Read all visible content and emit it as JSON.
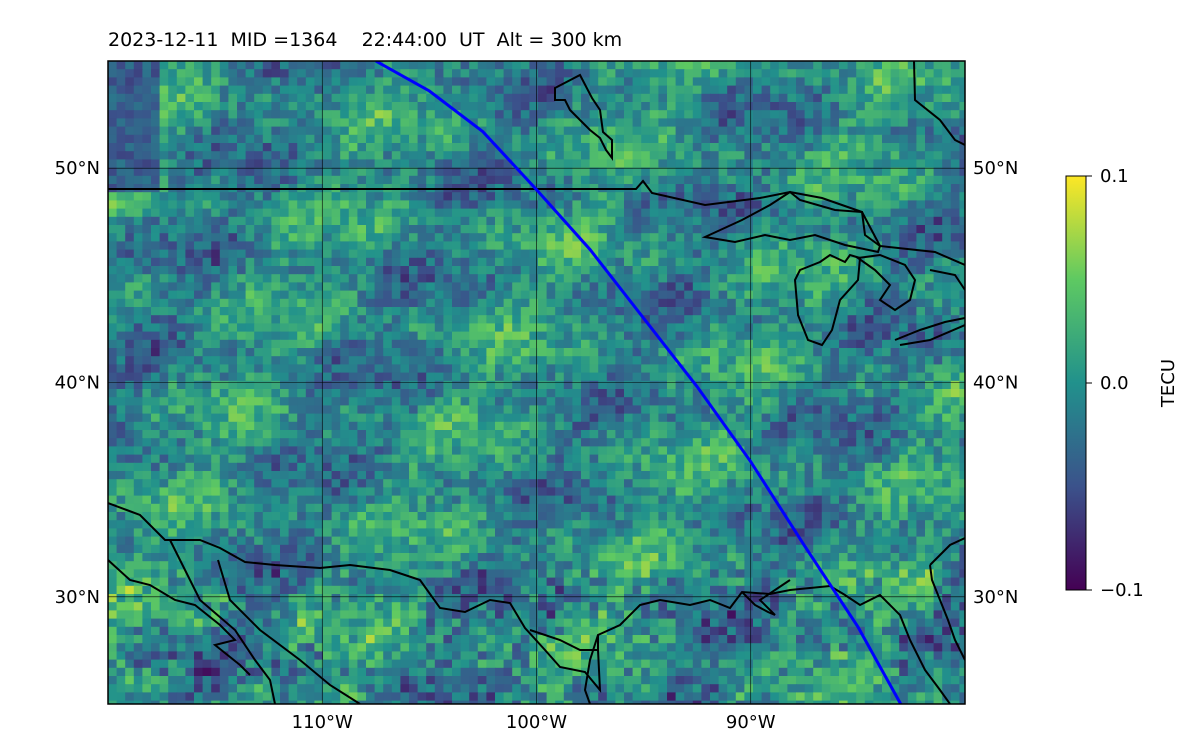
{
  "title": "2023-12-11  MID =1364    22:44:00  UT  Alt = 300 km",
  "map": {
    "lon_range": [
      -120,
      -80
    ],
    "lat_range": [
      25,
      55
    ],
    "lon_ticks": [
      {
        "value": -110,
        "label": "110°W"
      },
      {
        "value": -100,
        "label": "100°W"
      },
      {
        "value": -90,
        "label": "90°W"
      }
    ],
    "lat_ticks": [
      {
        "value": 50,
        "label": "50°N"
      },
      {
        "value": 40,
        "label": "40°N"
      },
      {
        "value": 30,
        "label": "30°N"
      }
    ],
    "track_color": "#0000ff",
    "track": [
      [
        -107.5,
        55
      ],
      [
        -105,
        53.6
      ],
      [
        -102.5,
        51.7
      ],
      [
        -100,
        49.0
      ],
      [
        -97.5,
        46.2
      ],
      [
        -95,
        43.0
      ],
      [
        -92.5,
        39.8
      ],
      [
        -90,
        36.3
      ],
      [
        -87.5,
        32.4
      ],
      [
        -85,
        28.6
      ],
      [
        -83,
        25
      ]
    ]
  },
  "colorbar": {
    "label": "TECU",
    "min": -0.1,
    "max": 0.1,
    "ticks": [
      {
        "value": 0.1,
        "label": "0.1"
      },
      {
        "value": 0.0,
        "label": "0.0"
      },
      {
        "value": -0.1,
        "label": "−0.1"
      }
    ],
    "colors": [
      "#440154",
      "#3b528b",
      "#21918c",
      "#5ec962",
      "#fde725"
    ]
  }
}
